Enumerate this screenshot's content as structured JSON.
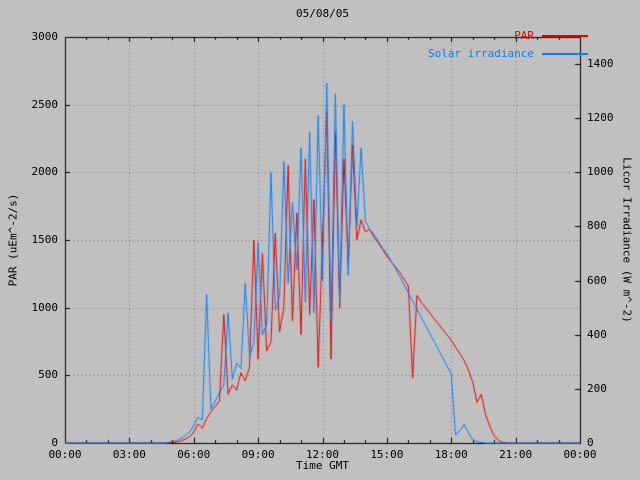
{
  "chart_data": {
    "type": "line",
    "title": "05/08/05",
    "xlabel": "Time GMT",
    "ylabel_left": "PAR (uEm^-2/s)",
    "ylabel_right": "Licor Irradiance (W m^-2)",
    "background": "#c0c0c0",
    "grid": "dotted",
    "grid_color": "#777777",
    "border_color": "#000000",
    "legend_position": "top-right",
    "x_range": [
      0,
      24
    ],
    "x_start": 0,
    "x_step": 0.2,
    "x_tick_hours": [
      0,
      3,
      6,
      9,
      12,
      15,
      18,
      21,
      24
    ],
    "x_tick_labels": [
      "00:00",
      "03:00",
      "06:00",
      "09:00",
      "12:00",
      "15:00",
      "18:00",
      "21:00",
      "00:00"
    ],
    "x_minor_step_hours": 1,
    "y_left_range": [
      0,
      3000
    ],
    "y_left_ticks": [
      0,
      500,
      1000,
      1500,
      2000,
      2500,
      3000
    ],
    "y_right_range": [
      0,
      1500
    ],
    "y_right_ticks": [
      0,
      200,
      400,
      600,
      800,
      1000,
      1200,
      1400
    ],
    "series": [
      {
        "name": "PAR",
        "color": "#e60000",
        "axis": "left",
        "units": "uEm^-2/s",
        "values": [
          0,
          0,
          0,
          0,
          0,
          0,
          0,
          0,
          0,
          0,
          0,
          0,
          0,
          0,
          0,
          0,
          0,
          0,
          0,
          0,
          0,
          0,
          0,
          0,
          0,
          4,
          8,
          15,
          28,
          45,
          80,
          140,
          110,
          180,
          230,
          270,
          310,
          950,
          360,
          430,
          390,
          520,
          460,
          560,
          1500,
          620,
          1400,
          680,
          750,
          1550,
          820,
          1000,
          2050,
          900,
          1700,
          800,
          2100,
          950,
          1800,
          560,
          1500,
          2450,
          620,
          2300,
          1000,
          2100,
          1300,
          2200,
          1500,
          1650,
          1560,
          1580,
          1520,
          1480,
          1430,
          1380,
          1340,
          1300,
          1260,
          1210,
          1160,
          480,
          1090,
          1040,
          1000,
          960,
          920,
          880,
          840,
          800,
          760,
          710,
          660,
          610,
          540,
          450,
          300,
          360,
          210,
          120,
          55,
          18,
          5,
          0,
          0,
          0,
          0,
          0,
          0,
          0,
          0,
          0,
          0,
          0,
          0,
          0,
          0,
          0,
          0,
          0,
          0
        ]
      },
      {
        "name": "Solar irradiance",
        "color": "#0080ff",
        "axis": "right",
        "units": "W m^-2",
        "values": [
          0,
          0,
          0,
          0,
          0,
          0,
          0,
          0,
          0,
          0,
          0,
          0,
          0,
          0,
          0,
          0,
          0,
          0,
          0,
          0,
          0,
          0,
          0,
          0,
          2,
          5,
          9,
          16,
          26,
          40,
          65,
          95,
          85,
          550,
          125,
          155,
          185,
          215,
          480,
          235,
          295,
          275,
          590,
          320,
          370,
          740,
          400,
          440,
          1000,
          490,
          540,
          1040,
          590,
          890,
          640,
          1090,
          520,
          1150,
          480,
          1210,
          600,
          1330,
          450,
          1290,
          520,
          1250,
          620,
          1190,
          800,
          1090,
          820,
          790,
          770,
          745,
          720,
          700,
          672,
          645,
          615,
          585,
          555,
          525,
          495,
          465,
          435,
          405,
          375,
          345,
          315,
          285,
          255,
          30,
          45,
          68,
          38,
          12,
          5,
          2,
          0,
          0,
          0,
          0,
          0,
          0,
          0,
          0,
          0,
          0,
          0,
          0,
          0,
          0,
          0,
          0,
          0,
          0,
          0,
          0,
          0,
          0,
          0
        ]
      }
    ]
  }
}
